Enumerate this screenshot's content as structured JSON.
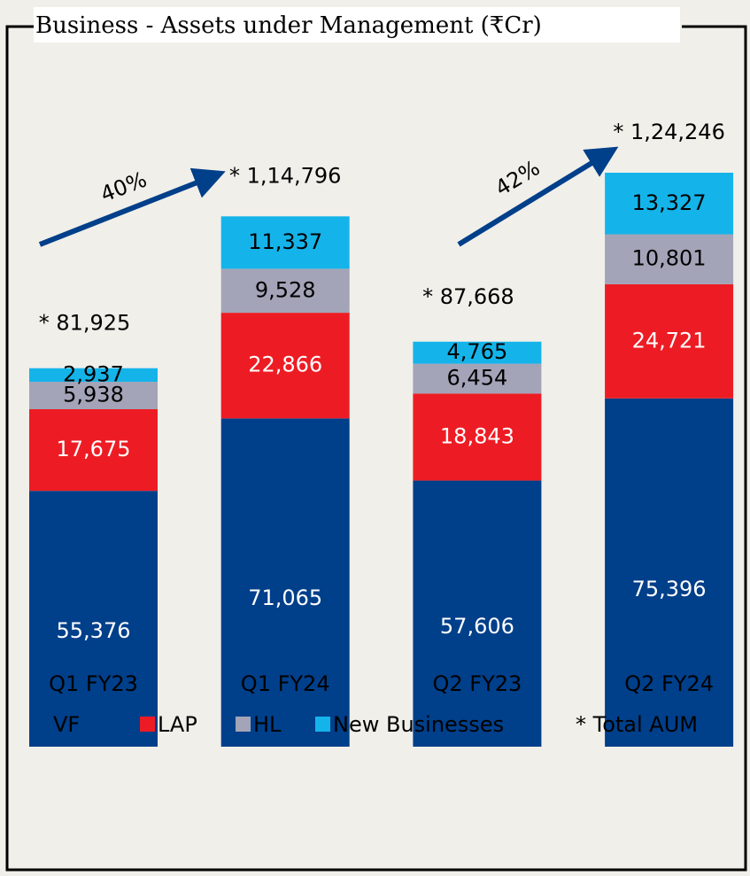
{
  "chart_data": {
    "type": "bar",
    "stacked": true,
    "title": "Business - Assets under Management (₹Cr)",
    "categories": [
      "Q1 FY23",
      "Q1 FY24",
      "Q2 FY23",
      "Q2 FY24"
    ],
    "series": [
      {
        "name": "VF",
        "color": "#003f8a",
        "values": [
          55376,
          71065,
          57606,
          75396
        ],
        "value_labels": [
          "55,376",
          "71,065",
          "57,606",
          "75,396"
        ]
      },
      {
        "name": "LAP",
        "color": "#ed1c24",
        "values": [
          17675,
          22866,
          18843,
          24721
        ],
        "value_labels": [
          "17,675",
          "22,866",
          "18,843",
          "24,721"
        ]
      },
      {
        "name": "HL",
        "color": "#a3a4b8",
        "values": [
          5938,
          9528,
          6454,
          10801
        ],
        "value_labels": [
          "5,938",
          "9,528",
          "6,454",
          "10,801"
        ]
      },
      {
        "name": "New Businesses",
        "color": "#14b4ea",
        "values": [
          2937,
          11337,
          4765,
          13327
        ],
        "value_labels": [
          "2,937",
          "11,337",
          "4,765",
          "13,327"
        ]
      }
    ],
    "totals": {
      "name": "* Total AUM",
      "values": [
        81925,
        114796,
        87668,
        124246
      ],
      "value_labels": [
        "* 81,925",
        "* 1,14,796",
        "* 87,668",
        "* 1,24,246"
      ]
    },
    "annotations": [
      "40%",
      "42%"
    ]
  }
}
